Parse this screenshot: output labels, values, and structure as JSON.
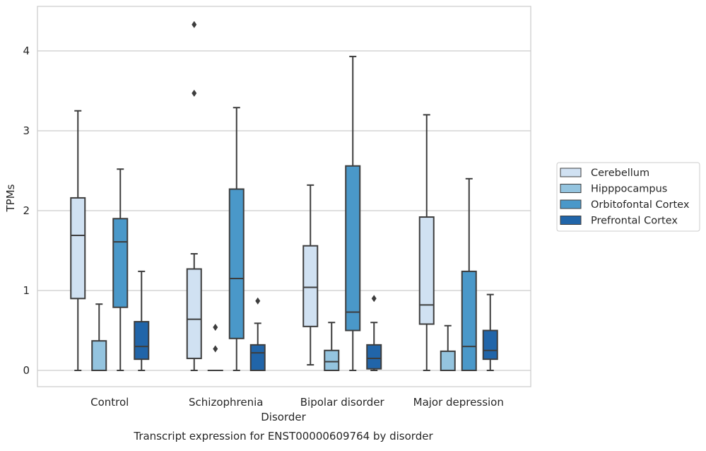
{
  "chart_data": {
    "type": "box",
    "caption": "Transcript expression for ENST00000609764 by disorder",
    "xlabel": "Disorder",
    "ylabel": "TPMs",
    "ylim": [
      -0.2,
      4.55
    ],
    "yticks": [
      "0",
      "1",
      "2",
      "3",
      "4"
    ],
    "grid": "horizontal",
    "legend_position": "right",
    "categories": [
      "Control",
      "Schizophrenia",
      "Bipolar disorder",
      "Major depression"
    ],
    "series": [
      {
        "name": "Cerebellum",
        "color": "#d0e1f2",
        "boxes": [
          {
            "whislo": 0.0,
            "q1": 0.9,
            "med": 1.69,
            "q3": 2.16,
            "whishi": 3.25,
            "fliers": []
          },
          {
            "whislo": 0.0,
            "q1": 0.15,
            "med": 0.64,
            "q3": 1.27,
            "whishi": 1.46,
            "fliers": [
              3.47,
              4.33
            ]
          },
          {
            "whislo": 0.07,
            "q1": 0.55,
            "med": 1.04,
            "q3": 1.56,
            "whishi": 2.32,
            "fliers": []
          },
          {
            "whislo": 0.0,
            "q1": 0.58,
            "med": 0.82,
            "q3": 1.92,
            "whishi": 3.2,
            "fliers": []
          }
        ]
      },
      {
        "name": "Hipppocampus",
        "color": "#94c4df",
        "boxes": [
          {
            "whislo": 0.0,
            "q1": 0.0,
            "med": 0.0,
            "q3": 0.37,
            "whishi": 0.83,
            "fliers": []
          },
          {
            "whislo": 0.0,
            "q1": 0.0,
            "med": 0.0,
            "q3": 0.0,
            "whishi": 0.0,
            "fliers": [
              0.27,
              0.54
            ]
          },
          {
            "whislo": 0.0,
            "q1": 0.0,
            "med": 0.11,
            "q3": 0.25,
            "whishi": 0.6,
            "fliers": []
          },
          {
            "whislo": 0.0,
            "q1": 0.0,
            "med": 0.0,
            "q3": 0.24,
            "whishi": 0.56,
            "fliers": []
          }
        ]
      },
      {
        "name": "Orbitofontal Cortex",
        "color": "#4a98c9",
        "boxes": [
          {
            "whislo": 0.0,
            "q1": 0.79,
            "med": 1.61,
            "q3": 1.9,
            "whishi": 2.52,
            "fliers": []
          },
          {
            "whislo": 0.0,
            "q1": 0.4,
            "med": 1.15,
            "q3": 2.27,
            "whishi": 3.29,
            "fliers": []
          },
          {
            "whislo": 0.0,
            "q1": 0.5,
            "med": 0.73,
            "q3": 2.56,
            "whishi": 3.93,
            "fliers": []
          },
          {
            "whislo": 0.0,
            "q1": 0.0,
            "med": 0.3,
            "q3": 1.24,
            "whishi": 2.4,
            "fliers": []
          }
        ]
      },
      {
        "name": "Prefrontal Cortex",
        "color": "#2165a9",
        "boxes": [
          {
            "whislo": 0.0,
            "q1": 0.14,
            "med": 0.3,
            "q3": 0.61,
            "whishi": 1.24,
            "fliers": []
          },
          {
            "whislo": 0.0,
            "q1": 0.0,
            "med": 0.22,
            "q3": 0.32,
            "whishi": 0.59,
            "fliers": [
              0.87
            ]
          },
          {
            "whislo": 0.0,
            "q1": 0.02,
            "med": 0.15,
            "q3": 0.32,
            "whishi": 0.6,
            "fliers": [
              0.9
            ]
          },
          {
            "whislo": 0.0,
            "q1": 0.14,
            "med": 0.25,
            "q3": 0.5,
            "whishi": 0.95,
            "fliers": []
          }
        ]
      }
    ]
  }
}
